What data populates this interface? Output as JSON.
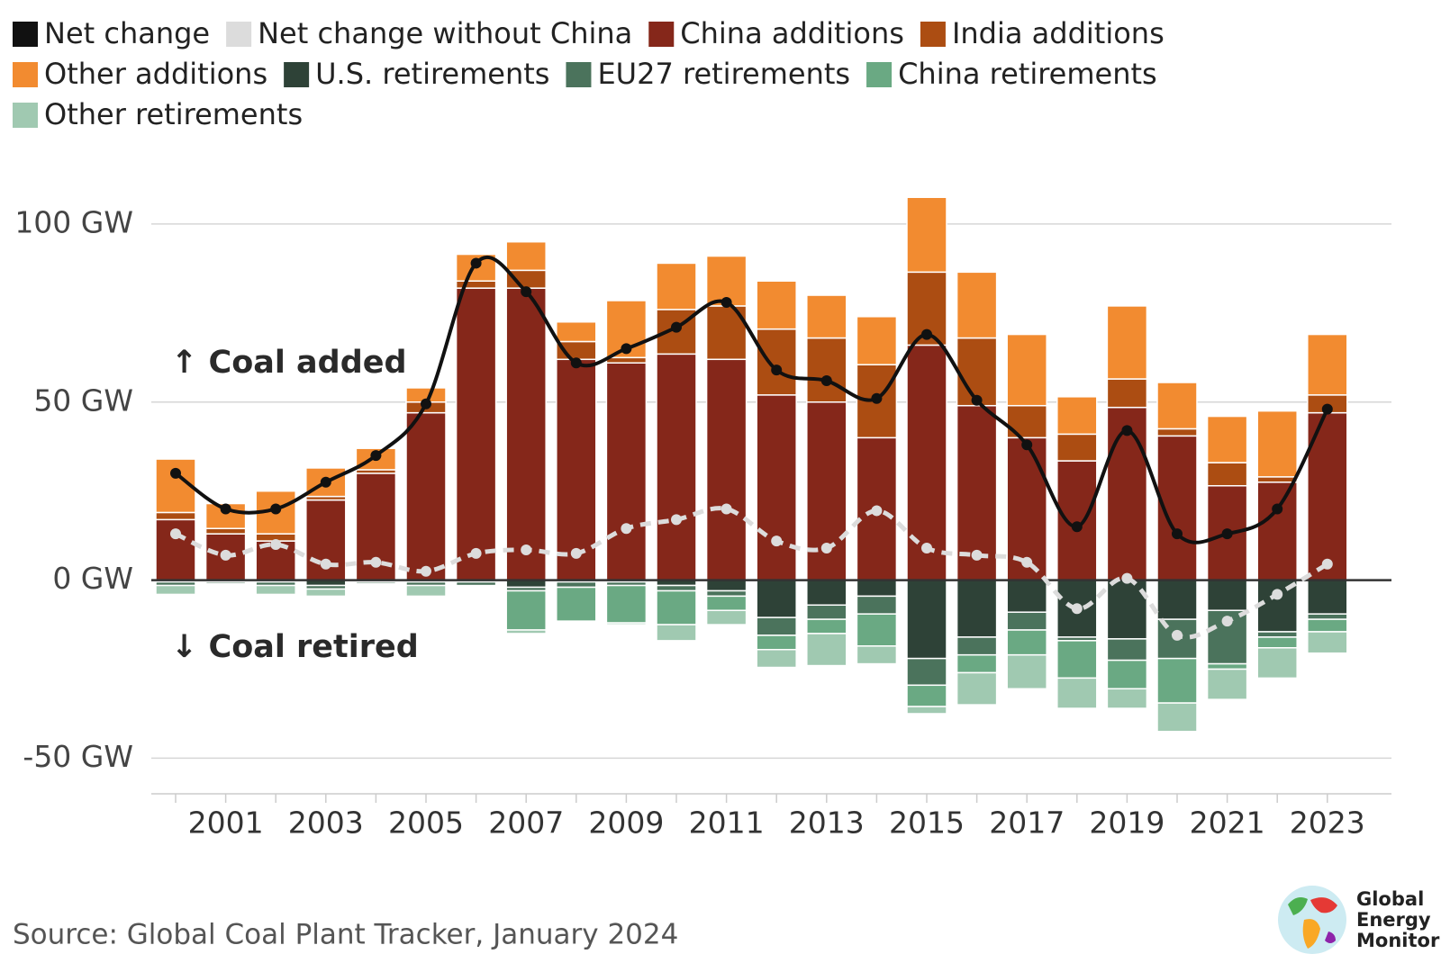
{
  "chart_data": {
    "type": "bar",
    "categories": [
      null,
      "2001",
      null,
      "2003",
      null,
      "2005",
      null,
      "2007",
      null,
      "2009",
      null,
      "2011",
      null,
      "2013",
      null,
      "2015",
      null,
      "2017",
      null,
      "2019",
      null,
      "2021",
      null,
      "2023"
    ],
    "series": [
      {
        "name": "Net change",
        "color": "#111111",
        "type": "line",
        "dashed": false,
        "values": [
          30,
          20,
          20,
          27.5,
          35,
          49.5,
          89,
          81,
          61,
          65,
          71,
          78,
          59,
          56,
          51,
          69,
          50.5,
          38,
          15,
          42,
          13,
          13,
          20,
          48
        ]
      },
      {
        "name": "Net change without China",
        "color": "#dcdcdc",
        "type": "line",
        "dashed": true,
        "values": [
          13,
          7,
          10,
          4.5,
          5,
          2.5,
          7.5,
          8.5,
          7.5,
          14.5,
          17,
          20,
          11,
          9,
          19.5,
          9,
          7,
          5,
          -8,
          0.5,
          -15.5,
          -11.5,
          -4,
          4.5
        ]
      },
      {
        "name": "China additions",
        "color": "#85271a",
        "type": "bar",
        "values": [
          17,
          13,
          11,
          22.5,
          30,
          47,
          82,
          82,
          62,
          61,
          63.5,
          62,
          52,
          50,
          40,
          66,
          49,
          40,
          33.5,
          48.5,
          40.5,
          26.5,
          27.5,
          47
        ]
      },
      {
        "name": "India additions",
        "color": "#ac4d12",
        "type": "bar",
        "values": [
          2,
          1.5,
          2,
          1,
          1,
          3,
          2,
          5,
          5,
          1.5,
          12.5,
          15,
          18.5,
          18,
          20.5,
          20.5,
          19,
          9,
          7.5,
          8,
          2,
          6.5,
          1.5,
          5
        ]
      },
      {
        "name": "Other additions",
        "color": "#f28b30",
        "type": "bar",
        "values": [
          15,
          7,
          12,
          8,
          6,
          4,
          7.5,
          8,
          5.5,
          16,
          13,
          14,
          13.5,
          12,
          13.5,
          21,
          18.5,
          20,
          10.5,
          20.5,
          13,
          13,
          18.5,
          17
        ]
      },
      {
        "name": "U.S. retirements",
        "color": "#2e4237",
        "type": "bar",
        "values": [
          -0.5,
          -0.5,
          -0.5,
          -1.5,
          -0.5,
          -0.5,
          -0.5,
          -2,
          -0.5,
          -0.5,
          -1.5,
          -3,
          -10.5,
          -7,
          -4.5,
          -22,
          -16,
          -9,
          -16,
          -16.5,
          -11,
          -8.5,
          -14.5,
          -9.5
        ]
      },
      {
        "name": "EU27 retirements",
        "color": "#4b735c",
        "type": "bar",
        "values": [
          -1,
          -0.5,
          -1,
          -1,
          -0.5,
          -1,
          -1,
          -1,
          -1.5,
          -1,
          -1.5,
          -1.5,
          -5,
          -4,
          -5,
          -7.5,
          -5,
          -5,
          -1,
          -6,
          -11,
          -15,
          -1.5,
          -1.5
        ]
      },
      {
        "name": "China retirements",
        "color": "#6aa983",
        "type": "bar",
        "values": [
          0,
          0,
          0,
          0,
          0,
          0,
          0,
          -11,
          -9.5,
          -10.5,
          -9.5,
          -4,
          -4,
          -4,
          -9,
          -6,
          -5,
          -7,
          -10.5,
          -8,
          -12.5,
          -1.5,
          -3,
          -3.5
        ]
      },
      {
        "name": "Other retirements",
        "color": "#a0c9b1",
        "type": "bar",
        "values": [
          -2.5,
          0,
          -2.5,
          -2,
          0,
          -3,
          0,
          -1,
          0,
          -0.5,
          -4.5,
          -4,
          -5,
          -9,
          -5,
          -2,
          -9,
          -9.5,
          -8.5,
          -5.5,
          -8,
          -8.5,
          -8.5,
          -6
        ]
      }
    ],
    "ylim": [
      -60,
      125
    ],
    "yticks": [
      {
        "value": -50,
        "label": "-50 GW"
      },
      {
        "value": 0,
        "label": "0 GW"
      },
      {
        "value": 50,
        "label": "50 GW"
      },
      {
        "value": 100,
        "label": "100 GW"
      }
    ],
    "grid": true,
    "annotations": [
      "↑ Coal added",
      "↓ Coal retired"
    ],
    "source": "Source: Global Coal Plant Tracker, January 2024",
    "logo": [
      "Global",
      "Energy",
      "Monitor"
    ]
  }
}
